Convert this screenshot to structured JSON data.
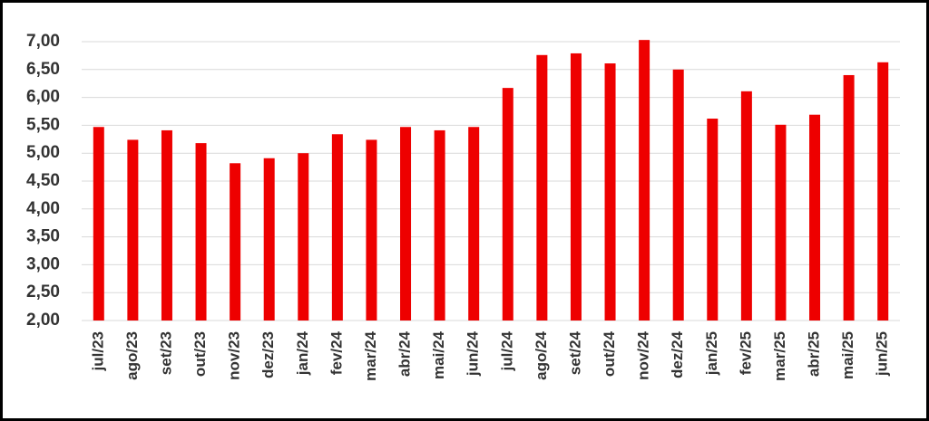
{
  "chart_data": {
    "type": "bar",
    "categories": [
      "jul/23",
      "ago/23",
      "set/23",
      "out/23",
      "nov/23",
      "dez/23",
      "jan/24",
      "fev/24",
      "mar/24",
      "abr/24",
      "mai/24",
      "jun/24",
      "jul/24",
      "ago/24",
      "set/24",
      "out/24",
      "nov/24",
      "dez/24",
      "jan/25",
      "fev/25",
      "mar/25",
      "abr/25",
      "mai/25",
      "jun/25"
    ],
    "values": [
      5.47,
      5.24,
      5.41,
      5.18,
      4.82,
      4.91,
      5.0,
      5.34,
      5.24,
      5.47,
      5.41,
      5.47,
      6.17,
      6.76,
      6.79,
      6.61,
      7.03,
      6.5,
      5.62,
      6.11,
      5.51,
      5.69,
      6.4,
      6.63
    ],
    "color": "#ee0000",
    "ylim": [
      2,
      7
    ],
    "yticks": [
      {
        "value": 2,
        "label": "2,00"
      },
      {
        "value": 2.5,
        "label": "2,50"
      },
      {
        "value": 3,
        "label": "3,00"
      },
      {
        "value": 3.5,
        "label": "3,50"
      },
      {
        "value": 4,
        "label": "4,00"
      },
      {
        "value": 4.5,
        "label": "4,50"
      },
      {
        "value": 5,
        "label": "5,00"
      },
      {
        "value": 5.5,
        "label": "5,50"
      },
      {
        "value": 6,
        "label": "6,00"
      },
      {
        "value": 6.5,
        "label": "6,50"
      },
      {
        "value": 7,
        "label": "7,00"
      }
    ],
    "grid": true
  }
}
